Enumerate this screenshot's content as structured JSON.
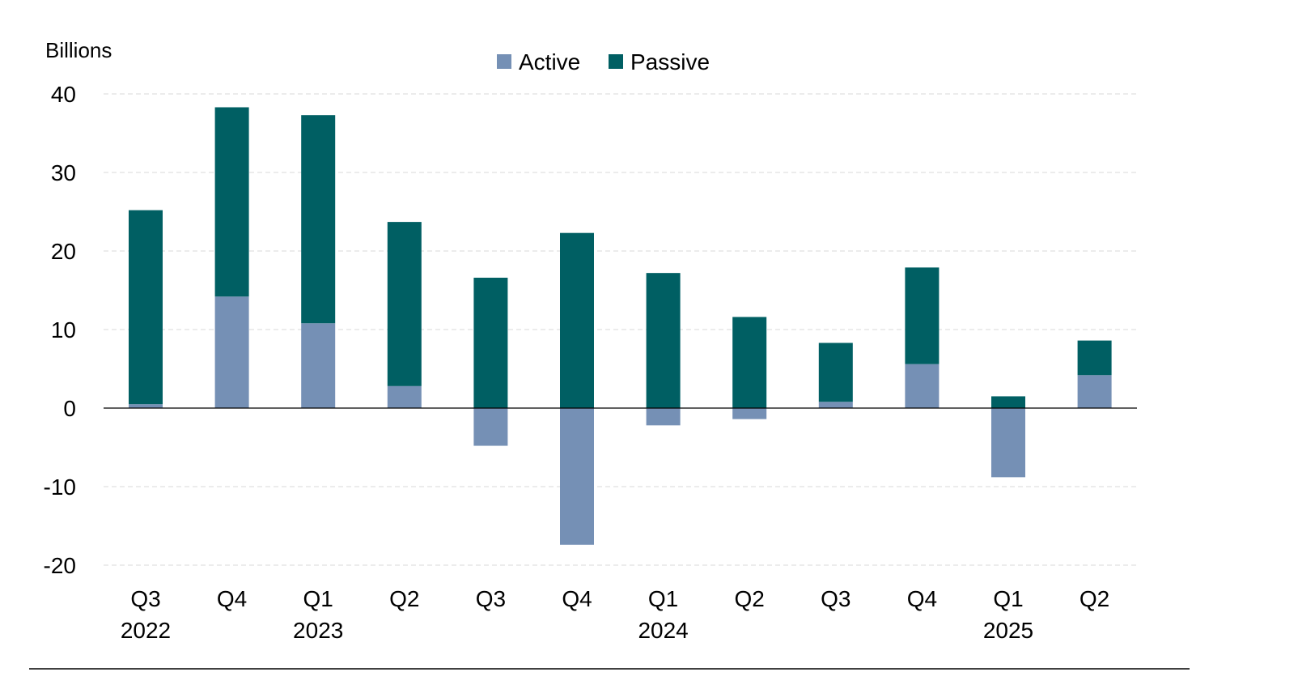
{
  "chart_data": {
    "type": "bar",
    "stacked": true,
    "unit_label": "Billions",
    "categories": [
      "Q3",
      "Q4",
      "Q1",
      "Q2",
      "Q3",
      "Q4",
      "Q1",
      "Q2",
      "Q3",
      "Q4",
      "Q1",
      "Q2"
    ],
    "year_labels": [
      {
        "index": 0,
        "label": "2022"
      },
      {
        "index": 2,
        "label": "2023"
      },
      {
        "index": 6,
        "label": "2024"
      },
      {
        "index": 10,
        "label": "2025"
      }
    ],
    "series": [
      {
        "name": "Active",
        "color": "#7590b5",
        "values": [
          0.5,
          14.2,
          10.8,
          2.8,
          -4.8,
          -17.4,
          -2.2,
          -1.4,
          0.8,
          5.6,
          -8.8,
          4.2
        ]
      },
      {
        "name": "Passive",
        "color": "#005f63",
        "values": [
          24.7,
          24.1,
          26.5,
          20.9,
          16.6,
          22.3,
          17.2,
          11.6,
          7.5,
          12.3,
          1.5,
          4.4
        ]
      }
    ],
    "ylim": [
      -20,
      40
    ],
    "yticks": [
      40,
      30,
      20,
      10,
      0,
      -10,
      -20
    ],
    "legend_position": "top-center",
    "grid": true
  }
}
